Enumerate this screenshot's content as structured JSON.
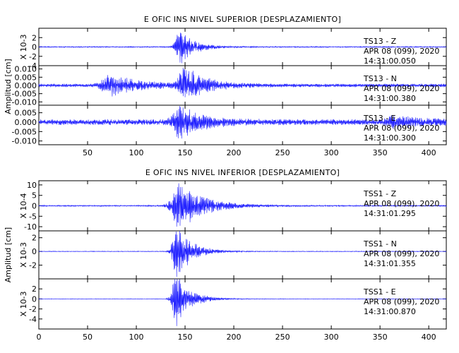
{
  "chart_data": [
    {
      "type": "line",
      "title": "E OFIC INS NIVEL SUPERIOR [DESPLAZAMIENTO]",
      "ylabel": "Amplitud [cm]",
      "xlim": [
        0,
        418
      ],
      "x_ticks": [
        50,
        100,
        150,
        200,
        250,
        300,
        350,
        400
      ],
      "panels": [
        {
          "station": "TS13 - Z",
          "date": "APR 08 (099), 2020",
          "time": "14:31:00.050",
          "multiplier": "X 10-3",
          "ylim": [
            -4,
            4
          ],
          "y_ticks": [
            -4,
            -2,
            0,
            2
          ],
          "y_tick_labels": [
            "-4",
            "-2",
            "0",
            "2"
          ],
          "signal": {
            "baseline_amp": 0.12,
            "bursts": [
              {
                "center": 145,
                "amp": 3.8,
                "width": 14
              }
            ]
          }
        },
        {
          "station": "TS13 - N",
          "date": "APR 08 (099), 2020",
          "time": "14:31:00.380",
          "multiplier": "",
          "ylim": [
            -0.012,
            0.012
          ],
          "y_ticks": [
            -0.01,
            -0.005,
            0,
            0.005,
            0.01
          ],
          "y_tick_labels": [
            "-0.010",
            "-0.005",
            "0.000",
            "0.005",
            "0.010"
          ],
          "signal": {
            "baseline_amp": 0.001,
            "bursts": [
              {
                "center": 75,
                "amp": 0.006,
                "width": 30
              },
              {
                "center": 150,
                "amp": 0.011,
                "width": 20
              }
            ]
          }
        },
        {
          "station": "TS13 - E",
          "date": "APR 08 (099), 2020",
          "time": "14:31:00.300",
          "multiplier": "",
          "ylim": [
            -0.012,
            0.009
          ],
          "y_ticks": [
            -0.01,
            -0.005,
            0,
            0.005
          ],
          "y_tick_labels": [
            "-0.010",
            "-0.005",
            "0.000",
            "0.005"
          ],
          "signal": {
            "baseline_amp": 0.0015,
            "bursts": [
              {
                "center": 145,
                "amp": 0.008,
                "width": 22
              },
              {
                "center": 365,
                "amp": 0.003,
                "width": 25
              }
            ]
          }
        }
      ]
    },
    {
      "type": "line",
      "title": "E OFIC INS NIVEL INFERIOR [DESPLAZAMIENTO]",
      "ylabel": "Amplitud [cm]",
      "xlim": [
        0,
        418
      ],
      "x_ticks": [
        0,
        50,
        100,
        150,
        200,
        250,
        300,
        350,
        400
      ],
      "panels": [
        {
          "station": "TSS1 - Z",
          "date": "APR 08 (099), 2020",
          "time": "14:31:01.295",
          "multiplier": "X 10-4",
          "ylim": [
            -12,
            12
          ],
          "y_ticks": [
            -10,
            -5,
            0,
            5,
            10
          ],
          "y_tick_labels": [
            "-10",
            "-5",
            "0",
            "5",
            "10"
          ],
          "signal": {
            "baseline_amp": 0.3,
            "bursts": [
              {
                "center": 145,
                "amp": 11,
                "width": 25
              }
            ]
          }
        },
        {
          "station": "TSS1 - N",
          "date": "APR 08 (099), 2020",
          "time": "14:31:01.355",
          "multiplier": "X 10-3",
          "ylim": [
            -4,
            3
          ],
          "y_ticks": [
            -2,
            0,
            2
          ],
          "y_tick_labels": [
            "-2",
            "0",
            "2"
          ],
          "signal": {
            "baseline_amp": 0.05,
            "bursts": [
              {
                "center": 142,
                "amp": 3.8,
                "width": 15
              }
            ]
          }
        },
        {
          "station": "TSS1 - E",
          "date": "APR 08 (099), 2020",
          "time": "14:31:00.870",
          "multiplier": "X 10-3",
          "ylim": [
            -6,
            4
          ],
          "y_ticks": [
            -4,
            -2,
            0,
            2
          ],
          "y_tick_labels": [
            "-4",
            "-2",
            "0",
            "2"
          ],
          "signal": {
            "baseline_amp": 0.05,
            "bursts": [
              {
                "center": 141,
                "amp": 5.5,
                "width": 14
              }
            ]
          }
        }
      ]
    }
  ]
}
